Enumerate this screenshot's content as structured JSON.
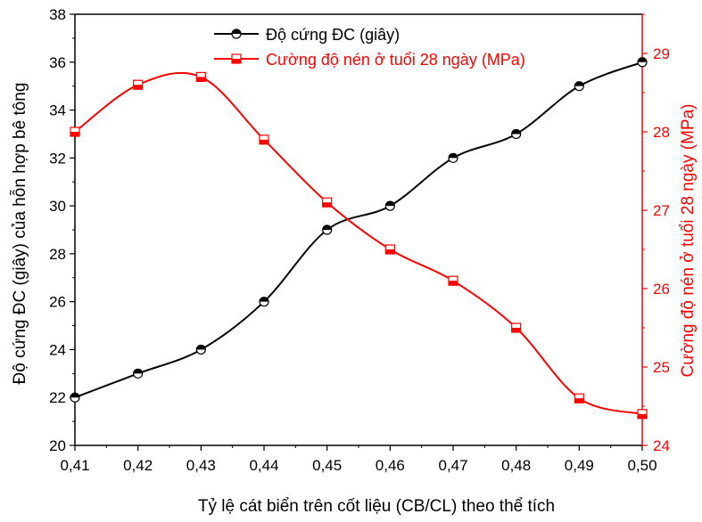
{
  "chart_data": {
    "type": "line",
    "xlabel": "Tỷ lệ cát biển trên cốt liệu (CB/CL) theo thể tích",
    "x_ticks": [
      "0,41",
      "0,42",
      "0,43",
      "0,44",
      "0,45",
      "0,46",
      "0,47",
      "0,48",
      "0,49",
      "0,50"
    ],
    "x": [
      0.41,
      0.42,
      0.43,
      0.44,
      0.45,
      0.46,
      0.47,
      0.48,
      0.49,
      0.5
    ],
    "xlim": [
      0.41,
      0.5
    ],
    "y_left": {
      "label": "Độ cứng ĐC (giây) của hỗn hợp bê tông",
      "lim": [
        20,
        38
      ],
      "ticks": [
        "20",
        "22",
        "24",
        "26",
        "28",
        "30",
        "32",
        "34",
        "36",
        "38"
      ],
      "color": "#000000"
    },
    "y_right": {
      "label": "Cường độ nén ở tuổi 28 ngày (MPa)",
      "lim": [
        24,
        29.5
      ],
      "ticks": [
        "24",
        "25",
        "26",
        "27",
        "28",
        "29"
      ],
      "color": "#ff0000"
    },
    "series": [
      {
        "name": "Độ cứng ĐC (giây)",
        "axis": "left",
        "color": "#000000",
        "marker": "half-filled-circle",
        "values": [
          22,
          23,
          24,
          26,
          29,
          30,
          32,
          33,
          35,
          36
        ]
      },
      {
        "name": "Cường độ nén ở tuổi 28 ngày (MPa)",
        "axis": "right",
        "color": "#ff0000",
        "marker": "half-filled-square",
        "values": [
          28.0,
          28.6,
          28.7,
          27.9,
          27.1,
          26.5,
          26.1,
          25.5,
          24.6,
          24.4
        ]
      }
    ],
    "legend_position": "top-center",
    "grid": false
  }
}
